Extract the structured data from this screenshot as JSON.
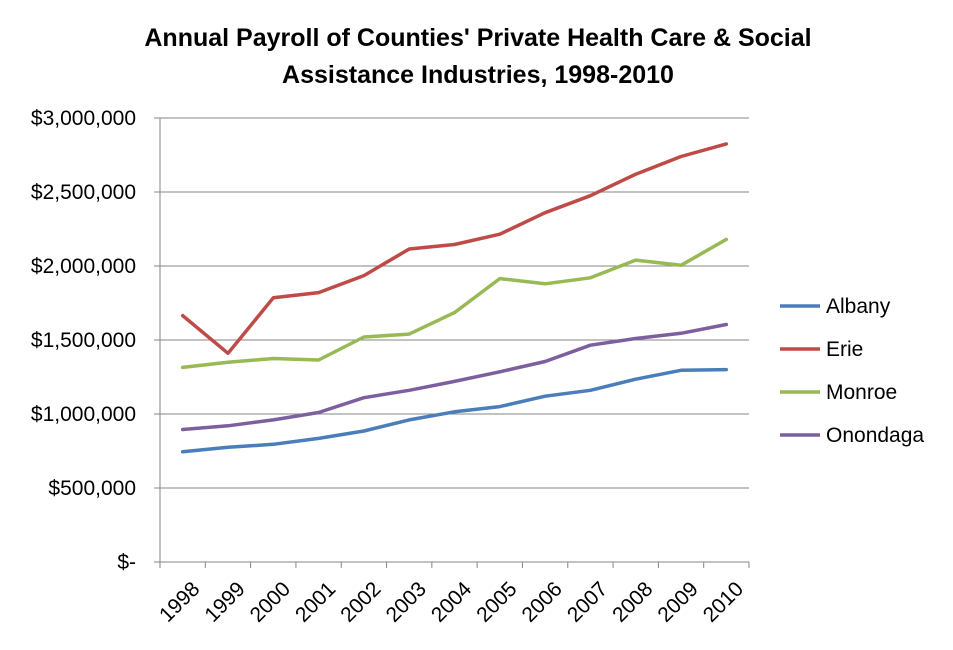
{
  "chart_data": {
    "type": "line",
    "title": "Annual Payroll of Counties' Private Health Care & Social Assistance Industries, 1998-2010",
    "title_lines": [
      "Annual Payroll of Counties' Private Health Care & Social",
      "Assistance Industries, 1998-2010"
    ],
    "xlabel": "",
    "ylabel": "",
    "categories": [
      "1998",
      "1999",
      "2000",
      "2001",
      "2002",
      "2003",
      "2004",
      "2005",
      "2006",
      "2007",
      "2008",
      "2009",
      "2010"
    ],
    "ylim": [
      0,
      3000000
    ],
    "yticks": [
      0,
      500000,
      1000000,
      1500000,
      2000000,
      2500000,
      3000000
    ],
    "ytick_labels": [
      "$-",
      "$500,000",
      "$1,000,000",
      "$1,500,000",
      "$2,000,000",
      "$2,500,000",
      "$3,000,000"
    ],
    "grid": "horizontal",
    "legend_position": "right",
    "series": [
      {
        "name": "Albany",
        "color": "#4a7ebb",
        "values": [
          745000,
          775000,
          795000,
          835000,
          885000,
          960000,
          1015000,
          1050000,
          1120000,
          1160000,
          1235000,
          1295000,
          1300000
        ]
      },
      {
        "name": "Erie",
        "color": "#be4b48",
        "values": [
          1665000,
          1410000,
          1785000,
          1820000,
          1935000,
          2115000,
          2145000,
          2215000,
          2360000,
          2475000,
          2620000,
          2740000,
          2825000
        ]
      },
      {
        "name": "Monroe",
        "color": "#98b954",
        "values": [
          1315000,
          1350000,
          1375000,
          1365000,
          1520000,
          1540000,
          1685000,
          1915000,
          1880000,
          1920000,
          2040000,
          2005000,
          2180000
        ]
      },
      {
        "name": "Onondaga",
        "color": "#7d5fa0",
        "values": [
          895000,
          920000,
          960000,
          1010000,
          1110000,
          1160000,
          1220000,
          1285000,
          1355000,
          1465000,
          1510000,
          1545000,
          1605000
        ]
      }
    ]
  }
}
